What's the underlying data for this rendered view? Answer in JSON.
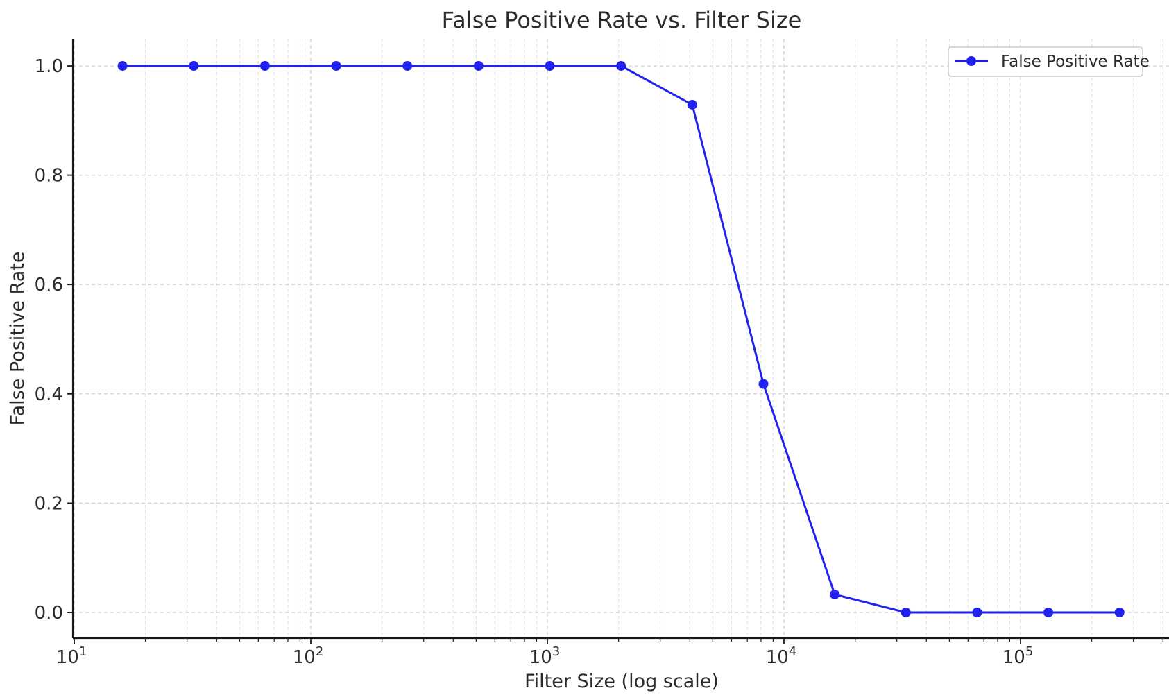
{
  "chart_data": {
    "type": "line",
    "title": "False Positive Rate vs. Filter Size",
    "xlabel": "Filter Size (log scale)",
    "ylabel": "False Positive Rate",
    "xscale": "log",
    "xlim": [
      10,
      400000
    ],
    "ylim": [
      -0.05,
      1.05
    ],
    "x_ticks": [
      {
        "base": "10",
        "exp": "1",
        "value": 10
      },
      {
        "base": "10",
        "exp": "2",
        "value": 100
      },
      {
        "base": "10",
        "exp": "3",
        "value": 1000
      },
      {
        "base": "10",
        "exp": "4",
        "value": 10000
      },
      {
        "base": "10",
        "exp": "5",
        "value": 100000
      }
    ],
    "y_ticks": [
      "0.0",
      "0.2",
      "0.4",
      "0.6",
      "0.8",
      "1.0"
    ],
    "grid": true,
    "legend_position": "top-right",
    "series": [
      {
        "name": "False Positive Rate",
        "color": "#2222ee",
        "marker": "circle",
        "x": [
          16,
          32,
          64,
          128,
          256,
          512,
          1024,
          2048,
          4096,
          8192,
          16384,
          32768,
          65536,
          131072,
          262144
        ],
        "y": [
          1.0,
          1.0,
          1.0,
          1.0,
          1.0,
          1.0,
          1.0,
          1.0,
          0.929,
          0.418,
          0.033,
          0.0,
          0.0,
          0.0,
          0.0
        ]
      }
    ]
  }
}
